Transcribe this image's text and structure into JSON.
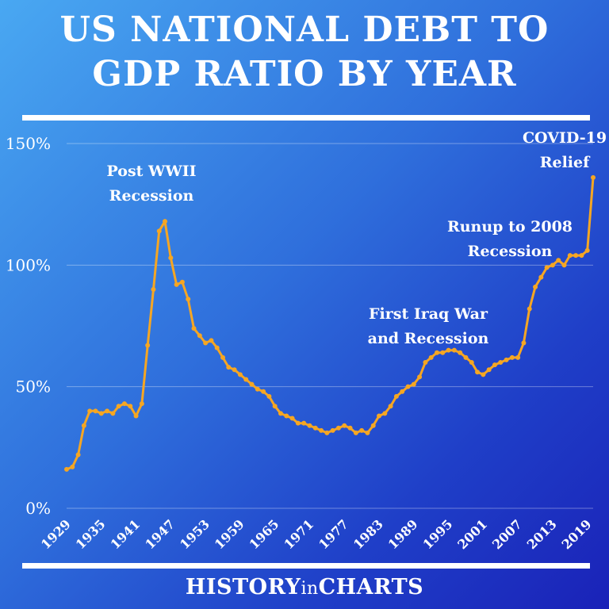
{
  "header": {
    "title_line1": "US NATIONAL DEBT TO",
    "title_line2": "GDP RATIO BY YEAR"
  },
  "footer": {
    "brand_a": "HISTORY",
    "brand_b": "in",
    "brand_c": "CHARTS"
  },
  "colors": {
    "line": "#f5a623",
    "text": "#ffffff",
    "grid": "#ffffff"
  },
  "chart_data": {
    "type": "line",
    "title": "US NATIONAL DEBT TO GDP RATIO BY YEAR",
    "xlabel": "",
    "ylabel": "",
    "ylim": [
      0,
      150
    ],
    "xlim": [
      1929,
      2020
    ],
    "yticks": [
      "0%",
      "50%",
      "100%",
      "150%"
    ],
    "ytick_values": [
      0,
      50,
      100,
      150
    ],
    "xticks": [
      "1929",
      "1935",
      "1941",
      "1947",
      "1953",
      "1959",
      "1965",
      "1971",
      "1977",
      "1983",
      "1989",
      "1995",
      "2001",
      "2007",
      "2013",
      "2019"
    ],
    "grid": true,
    "x": [
      1929,
      1930,
      1931,
      1932,
      1933,
      1934,
      1935,
      1936,
      1937,
      1938,
      1939,
      1940,
      1941,
      1942,
      1943,
      1944,
      1945,
      1946,
      1947,
      1948,
      1949,
      1950,
      1951,
      1952,
      1953,
      1954,
      1955,
      1956,
      1957,
      1958,
      1959,
      1960,
      1961,
      1962,
      1963,
      1964,
      1965,
      1966,
      1967,
      1968,
      1969,
      1970,
      1971,
      1972,
      1973,
      1974,
      1975,
      1976,
      1977,
      1978,
      1979,
      1980,
      1981,
      1982,
      1983,
      1984,
      1985,
      1986,
      1987,
      1988,
      1989,
      1990,
      1991,
      1992,
      1993,
      1994,
      1995,
      1996,
      1997,
      1998,
      1999,
      2000,
      2001,
      2002,
      2003,
      2004,
      2005,
      2006,
      2007,
      2008,
      2009,
      2010,
      2011,
      2012,
      2013,
      2014,
      2015,
      2016,
      2017,
      2018,
      2019,
      2020
    ],
    "series": [
      {
        "values": [
          16,
          17,
          22,
          34,
          40,
          40,
          39,
          40,
          39,
          42,
          43,
          42,
          38,
          43,
          67,
          90,
          114,
          118,
          103,
          92,
          93,
          86,
          74,
          71,
          68,
          69,
          66,
          62,
          58,
          57,
          55,
          53,
          51,
          49,
          48,
          46,
          42,
          39,
          38,
          37,
          35,
          35,
          34,
          33,
          32,
          31,
          32,
          33,
          34,
          33,
          31,
          32,
          31,
          34,
          38,
          39,
          42,
          46,
          48,
          50,
          51,
          54,
          60,
          62,
          64,
          64,
          65,
          65,
          64,
          62,
          60,
          56,
          55,
          57,
          59,
          60,
          61,
          62,
          62,
          68,
          82,
          91,
          95,
          99,
          100,
          102,
          100,
          104,
          104,
          104,
          106,
          136
        ]
      }
    ],
    "annotations": [
      {
        "lines": [
          "Post WWII",
          "Recession"
        ],
        "year": 1946
      },
      {
        "lines": [
          "First Iraq War",
          "and Recession"
        ],
        "year": 1991
      },
      {
        "lines": [
          "Runup to 2008",
          "Recession"
        ],
        "year": 2008
      },
      {
        "lines": [
          "COVID-19",
          "Relief"
        ],
        "year": 2020
      }
    ]
  }
}
